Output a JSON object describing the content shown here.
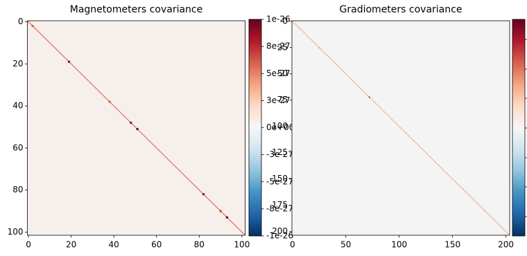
{
  "chart_data": [
    {
      "type": "heatmap",
      "title": "Magnetometers covariance",
      "xlim": [
        -0.5,
        101.5
      ],
      "ylim": [
        101.5,
        -0.5
      ],
      "xticks": [
        0,
        20,
        40,
        60,
        80,
        100
      ],
      "yticks": [
        0,
        20,
        40,
        60,
        80,
        100
      ],
      "clim": [
        -1e-26,
        1e-26
      ],
      "cbar_ticks": [
        {
          "value": 1e-26,
          "label": "1e-26"
        },
        {
          "value": 7.5e-27,
          "label": "8e-27"
        },
        {
          "value": 5e-27,
          "label": "5e-27"
        },
        {
          "value": 2.5e-27,
          "label": "3e-27"
        },
        {
          "value": 0,
          "label": "0e+00"
        },
        {
          "value": -2.5e-27,
          "label": "-3e-27"
        },
        {
          "value": -5e-27,
          "label": "-5e-27"
        },
        {
          "value": -7.5e-27,
          "label": "-8e-27"
        },
        {
          "value": -1e-26,
          "label": "-1e-26"
        }
      ],
      "cells": [
        {
          "row": 2,
          "col": 2,
          "value": 6e-27
        },
        {
          "row": 19,
          "col": 19,
          "value": 9e-27
        },
        {
          "row": 38,
          "col": 38,
          "value": 6e-27
        },
        {
          "row": 48,
          "col": 48,
          "value": 9e-27
        },
        {
          "row": 51,
          "col": 51,
          "value": 1e-26
        },
        {
          "row": 82,
          "col": 82,
          "value": 9e-27
        },
        {
          "row": 90,
          "col": 90,
          "value": 7e-27
        },
        {
          "row": 93,
          "col": 93,
          "value": 1e-26
        }
      ]
    },
    {
      "type": "heatmap",
      "title": "Gradiometers covariance",
      "xlim": [
        -0.5,
        203.5
      ],
      "ylim": [
        203.5,
        -0.5
      ],
      "xticks": [
        0,
        50,
        100,
        150,
        200
      ],
      "yticks": [
        0,
        25,
        50,
        75,
        100,
        125,
        150,
        175,
        200
      ],
      "cells": [
        {
          "row": 25,
          "col": 25,
          "color": "#e8a090"
        },
        {
          "row": 72,
          "col": 72,
          "color": "#8b0a24"
        },
        {
          "row": 180,
          "col": 180,
          "color": "#e8a090"
        }
      ]
    }
  ]
}
